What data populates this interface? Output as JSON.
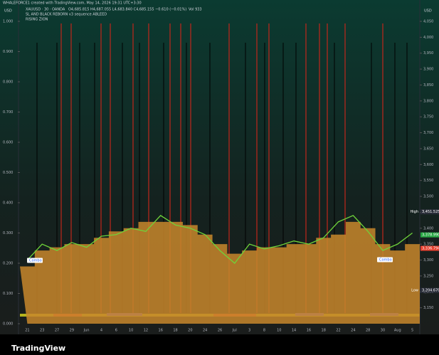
{
  "header": {
    "watermark": "WHALEFORCE1 created with TradingView.com, May 14, 2026 19:31 UTC+3:30",
    "symbol": "XAUUSD · 30 · OANDA",
    "ohlc": "O4,685.815 H4,687.055 L4,683.840 C4,685.155 −0.610 (−0.01%)",
    "volume": "Vol 933",
    "indicator_1": "SL AND BLACK REBORN v3 sequence ABLEED",
    "indicator_2": "RISING ZION",
    "currency_left": "USD",
    "currency_right": "USD",
    "brand": "TradingView"
  },
  "chart_data": {
    "type": "line",
    "categories": [
      "21",
      "23",
      "27",
      "29",
      "Jun",
      "4",
      "6",
      "10",
      "12",
      "16",
      "18",
      "20",
      "24",
      "26",
      "Jul",
      "3",
      "8",
      "10",
      "14",
      "16",
      "18",
      "22",
      "24",
      "28",
      "30",
      "Aug",
      "5"
    ],
    "series": [
      {
        "color": "#6fd33a",
        "values": [
          3300,
          3350,
          3330,
          3355,
          3340,
          3375,
          3380,
          3400,
          3390,
          3440,
          3410,
          3400,
          3380,
          3330,
          3290,
          3350,
          3335,
          3345,
          3360,
          3350,
          3370,
          3420,
          3440,
          3390,
          3330,
          3350,
          3385
        ]
      },
      {
        "color": "#c8872c",
        "values": [
          3280,
          3330,
          3340,
          3350,
          3350,
          3370,
          3390,
          3400,
          3420,
          3420,
          3420,
          3410,
          3380,
          3350,
          3320,
          3330,
          3340,
          3340,
          3350,
          3350,
          3370,
          3380,
          3420,
          3400,
          3350,
          3330,
          3350
        ]
      }
    ],
    "ylim": [
      3100,
      4050
    ],
    "yticks": [
      {
        "value": 3150,
        "label": "3,150"
      },
      {
        "value": 3200,
        "label": "3,200"
      },
      {
        "value": 3250,
        "label": "3,250"
      },
      {
        "value": 3300,
        "label": "3,300"
      },
      {
        "value": 3350,
        "label": "3,350"
      },
      {
        "value": 3400,
        "label": "3,400"
      },
      {
        "value": 3450,
        "label": "3,450"
      },
      {
        "value": 3500,
        "label": "3,500"
      },
      {
        "value": 3550,
        "label": "3,550"
      },
      {
        "value": 3600,
        "label": "3,600"
      },
      {
        "value": 3650,
        "label": "3,650"
      },
      {
        "value": 3700,
        "label": "3,700"
      },
      {
        "value": 3750,
        "label": "3,750"
      },
      {
        "value": 3800,
        "label": "3,800"
      },
      {
        "value": 3850,
        "label": "3,850"
      },
      {
        "value": 3900,
        "label": "3,900"
      },
      {
        "value": 3950,
        "label": "3,950"
      },
      {
        "value": 4000,
        "label": "4,000"
      },
      {
        "value": 4050,
        "label": "4,050"
      }
    ],
    "y2lim": [
      0,
      1
    ],
    "y2ticks": [
      {
        "value": 0,
        "label": "0.000"
      },
      {
        "value": 0.1,
        "label": "0.100"
      },
      {
        "value": 0.2,
        "label": "0.200"
      },
      {
        "value": 0.3,
        "label": "0.300"
      },
      {
        "value": 0.4,
        "label": "0.400"
      },
      {
        "value": 0.5,
        "label": "0.500"
      },
      {
        "value": 0.6,
        "label": "0.600"
      },
      {
        "value": 0.7,
        "label": "0.700"
      },
      {
        "value": 0.8,
        "label": "0.800"
      },
      {
        "value": 0.9,
        "label": "0.900"
      },
      {
        "value": 1,
        "label": "1.000"
      }
    ],
    "badges": [
      {
        "label": "High",
        "value": 3451.525,
        "value_label": "3,451.525",
        "color": "#2a2e39"
      },
      {
        "label": "Low",
        "value": 3204.67,
        "value_label": "3,204.670",
        "color": "#2a2e39"
      },
      {
        "value": 3378.99,
        "value_label": "3,378.990",
        "color": "#26a642"
      },
      {
        "value": 3336.794,
        "value_label": "3,336.794",
        "color": "#e5402f"
      }
    ],
    "annotations": [
      "Combo",
      "Combo"
    ]
  }
}
